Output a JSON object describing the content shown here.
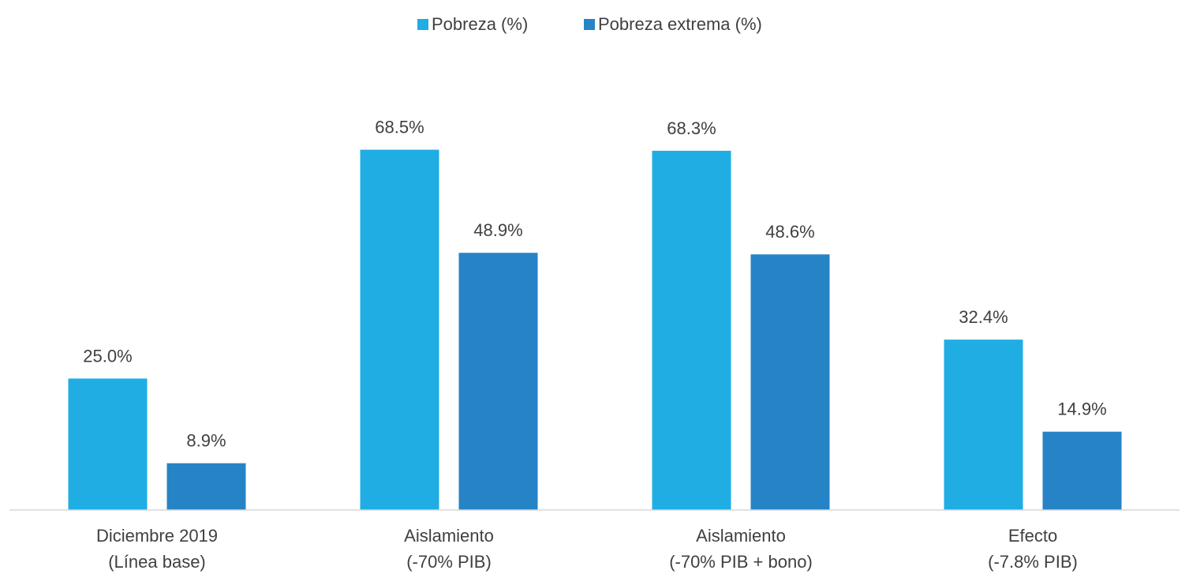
{
  "chart_data": {
    "type": "bar",
    "categories": [
      [
        "Diciembre 2019",
        "(Línea base)"
      ],
      [
        "Aislamiento",
        "(-70% PIB)"
      ],
      [
        "Aislamiento",
        "(-70% PIB + bono)"
      ],
      [
        "Efecto",
        "(-7.8% PIB)"
      ]
    ],
    "series": [
      {
        "name": "Pobreza (%)",
        "color": "#1fade4",
        "values": [
          25.0,
          68.5,
          68.3,
          32.4
        ],
        "value_labels": [
          "25.0%",
          "68.5%",
          "68.3%",
          "32.4%"
        ]
      },
      {
        "name": "Pobreza extrema (%)",
        "color": "#2683c6",
        "values": [
          8.9,
          48.9,
          48.6,
          14.9
        ],
        "value_labels": [
          "8.9%",
          "48.9%",
          "48.6%",
          "14.9%"
        ]
      }
    ],
    "ylim": [
      0,
      80
    ],
    "legend": "top"
  }
}
